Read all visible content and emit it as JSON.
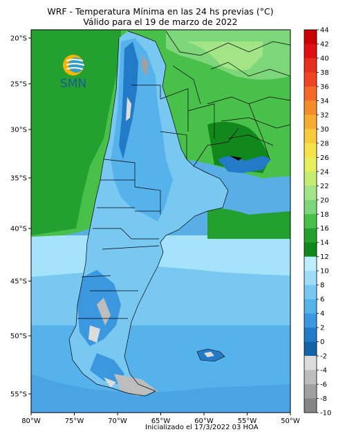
{
  "title_line1": "WRF - Temperatura Mínima en las 24 hs previas (°C)",
  "title_line2": "Válido para el 19 de marzo de 2022",
  "init_text": "Inicializado el 17/3/2022 03 HOA",
  "logo_text": "SMN",
  "map": {
    "lon_ticks": [
      "80°W",
      "75°W",
      "70°W",
      "65°W",
      "60°W",
      "55°W",
      "50°W"
    ],
    "lat_ticks": [
      "20°S",
      "25°S",
      "30°S",
      "35°S",
      "40°S",
      "45°S",
      "50°S",
      "55°S"
    ],
    "lon_range": [
      -80,
      -50
    ],
    "lat_range": [
      -56.5,
      -19
    ]
  },
  "colorbar": {
    "labels": [
      "44",
      "42",
      "40",
      "38",
      "36",
      "34",
      "32",
      "30",
      "28",
      "26",
      "24",
      "22",
      "20",
      "18",
      "16",
      "14",
      "12",
      "10",
      "8",
      "6",
      "4",
      "2",
      "0",
      "-2",
      "-4",
      "-6",
      "-8",
      "-10"
    ],
    "colors": [
      "#cc0000",
      "#dd1111",
      "#e62e1e",
      "#ee4422",
      "#f26a2a",
      "#f58c2c",
      "#f7ad32",
      "#f8cb3c",
      "#f6e24a",
      "#e6ef5c",
      "#c6ec72",
      "#a3e486",
      "#7dd67a",
      "#48c04a",
      "#24a030",
      "#10881c",
      "#bdeefd",
      "#9fdcf8",
      "#78c8f2",
      "#56b2ea",
      "#3b98de",
      "#237bc8",
      "#1263a8",
      "#dcdcdc",
      "#bdbdbd",
      "#a0a0a0",
      "#858585",
      "#6b6b6b"
    ]
  }
}
